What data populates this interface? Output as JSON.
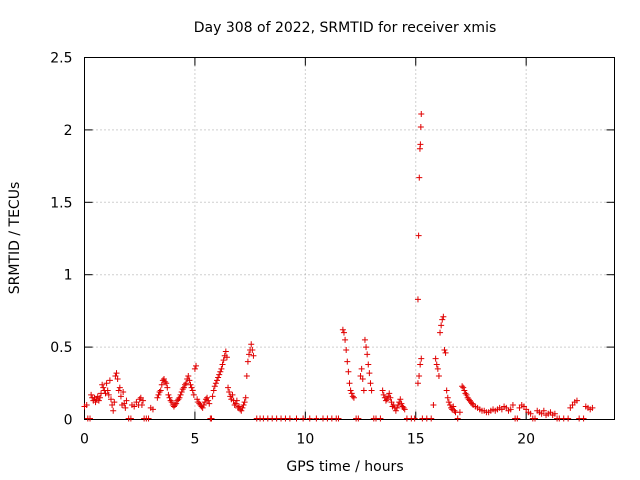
{
  "chart_data": {
    "type": "scatter",
    "title": "Day 308 of 2022, SRMTID for receiver xmis",
    "xlabel": "GPS time / hours",
    "ylabel": "SRMTID / TECUs",
    "xlim": [
      0,
      24
    ],
    "ylim": [
      0,
      2.5
    ],
    "x_ticks": [
      0,
      5,
      10,
      15,
      20
    ],
    "x_tick_labels": [
      "0",
      "5",
      "10",
      "15",
      "20"
    ],
    "y_ticks": [
      0,
      0.5,
      1,
      1.5,
      2,
      2.5
    ],
    "y_tick_labels": [
      "0",
      "0.5",
      "1",
      "1.5",
      "2",
      "2.5"
    ],
    "grid": true,
    "marker": "+",
    "marker_color": "#e00000",
    "series": [
      {
        "name": "SRMTID",
        "points": [
          [
            0.0,
            0.09
          ],
          [
            0.1,
            0.1
          ],
          [
            0.15,
            0.0
          ],
          [
            0.25,
            0.0
          ],
          [
            0.3,
            0.17
          ],
          [
            0.35,
            0.15
          ],
          [
            0.4,
            0.13
          ],
          [
            0.45,
            0.15
          ],
          [
            0.5,
            0.12
          ],
          [
            0.55,
            0.14
          ],
          [
            0.6,
            0.16
          ],
          [
            0.65,
            0.13
          ],
          [
            0.7,
            0.15
          ],
          [
            0.75,
            0.18
          ],
          [
            0.8,
            0.24
          ],
          [
            0.85,
            0.22
          ],
          [
            0.9,
            0.2
          ],
          [
            0.95,
            0.18
          ],
          [
            1.0,
            0.25
          ],
          [
            1.05,
            0.2
          ],
          [
            1.1,
            0.17
          ],
          [
            1.15,
            0.27
          ],
          [
            1.2,
            0.14
          ],
          [
            1.25,
            0.1
          ],
          [
            1.3,
            0.06
          ],
          [
            1.35,
            0.12
          ],
          [
            1.4,
            0.3
          ],
          [
            1.45,
            0.32
          ],
          [
            1.5,
            0.28
          ],
          [
            1.55,
            0.2
          ],
          [
            1.6,
            0.22
          ],
          [
            1.65,
            0.16
          ],
          [
            1.7,
            0.1
          ],
          [
            1.75,
            0.19
          ],
          [
            1.8,
            0.11
          ],
          [
            1.85,
            0.08
          ],
          [
            1.9,
            0.13
          ],
          [
            2.0,
            0.0
          ],
          [
            2.1,
            0.0
          ],
          [
            2.15,
            0.1
          ],
          [
            2.25,
            0.09
          ],
          [
            2.35,
            0.12
          ],
          [
            2.45,
            0.1
          ],
          [
            2.5,
            0.14
          ],
          [
            2.55,
            0.15
          ],
          [
            2.6,
            0.1
          ],
          [
            2.65,
            0.13
          ],
          [
            2.7,
            0.0
          ],
          [
            2.8,
            0.0
          ],
          [
            2.9,
            0.0
          ],
          [
            3.0,
            0.08
          ],
          [
            3.1,
            0.07
          ],
          [
            3.3,
            0.15
          ],
          [
            3.35,
            0.17
          ],
          [
            3.4,
            0.19
          ],
          [
            3.45,
            0.2
          ],
          [
            3.5,
            0.24
          ],
          [
            3.55,
            0.27
          ],
          [
            3.6,
            0.28
          ],
          [
            3.65,
            0.26
          ],
          [
            3.7,
            0.25
          ],
          [
            3.75,
            0.22
          ],
          [
            3.8,
            0.17
          ],
          [
            3.85,
            0.15
          ],
          [
            3.9,
            0.13
          ],
          [
            3.95,
            0.12
          ],
          [
            4.0,
            0.1
          ],
          [
            4.05,
            0.09
          ],
          [
            4.1,
            0.1
          ],
          [
            4.15,
            0.11
          ],
          [
            4.2,
            0.13
          ],
          [
            4.25,
            0.14
          ],
          [
            4.3,
            0.15
          ],
          [
            4.35,
            0.17
          ],
          [
            4.4,
            0.19
          ],
          [
            4.45,
            0.21
          ],
          [
            4.5,
            0.22
          ],
          [
            4.55,
            0.24
          ],
          [
            4.6,
            0.25
          ],
          [
            4.65,
            0.28
          ],
          [
            4.7,
            0.3
          ],
          [
            4.75,
            0.27
          ],
          [
            4.8,
            0.24
          ],
          [
            4.85,
            0.22
          ],
          [
            4.9,
            0.2
          ],
          [
            4.95,
            0.17
          ],
          [
            5.0,
            0.35
          ],
          [
            5.05,
            0.37
          ],
          [
            5.1,
            0.14
          ],
          [
            5.15,
            0.12
          ],
          [
            5.2,
            0.11
          ],
          [
            5.25,
            0.1
          ],
          [
            5.3,
            0.09
          ],
          [
            5.35,
            0.08
          ],
          [
            5.4,
            0.1
          ],
          [
            5.45,
            0.12
          ],
          [
            5.5,
            0.14
          ],
          [
            5.55,
            0.15
          ],
          [
            5.6,
            0.13
          ],
          [
            5.65,
            0.11
          ],
          [
            5.7,
            0.0
          ],
          [
            5.75,
            0.0
          ],
          [
            5.8,
            0.16
          ],
          [
            5.85,
            0.2
          ],
          [
            5.9,
            0.23
          ],
          [
            5.95,
            0.25
          ],
          [
            6.0,
            0.27
          ],
          [
            6.05,
            0.29
          ],
          [
            6.1,
            0.31
          ],
          [
            6.15,
            0.33
          ],
          [
            6.2,
            0.35
          ],
          [
            6.25,
            0.38
          ],
          [
            6.3,
            0.41
          ],
          [
            6.35,
            0.44
          ],
          [
            6.4,
            0.47
          ],
          [
            6.45,
            0.43
          ],
          [
            6.5,
            0.22
          ],
          [
            6.55,
            0.19
          ],
          [
            6.6,
            0.16
          ],
          [
            6.65,
            0.14
          ],
          [
            6.7,
            0.17
          ],
          [
            6.75,
            0.13
          ],
          [
            6.8,
            0.1
          ],
          [
            6.85,
            0.11
          ],
          [
            6.9,
            0.13
          ],
          [
            6.95,
            0.08
          ],
          [
            7.0,
            0.09
          ],
          [
            7.05,
            0.07
          ],
          [
            7.1,
            0.06
          ],
          [
            7.15,
            0.08
          ],
          [
            7.2,
            0.1
          ],
          [
            7.25,
            0.12
          ],
          [
            7.3,
            0.15
          ],
          [
            7.35,
            0.3
          ],
          [
            7.4,
            0.4
          ],
          [
            7.45,
            0.45
          ],
          [
            7.5,
            0.48
          ],
          [
            7.55,
            0.52
          ],
          [
            7.6,
            0.48
          ],
          [
            7.65,
            0.44
          ],
          [
            7.8,
            0.0
          ],
          [
            7.95,
            0.0
          ],
          [
            8.1,
            0.0
          ],
          [
            8.3,
            0.0
          ],
          [
            8.5,
            0.0
          ],
          [
            8.7,
            0.0
          ],
          [
            8.9,
            0.0
          ],
          [
            9.1,
            0.0
          ],
          [
            9.3,
            0.0
          ],
          [
            9.6,
            0.0
          ],
          [
            9.9,
            0.0
          ],
          [
            10.2,
            0.0
          ],
          [
            10.5,
            0.0
          ],
          [
            10.8,
            0.0
          ],
          [
            11.0,
            0.0
          ],
          [
            11.2,
            0.0
          ],
          [
            11.4,
            0.0
          ],
          [
            11.5,
            0.0
          ],
          [
            11.7,
            0.62
          ],
          [
            11.75,
            0.6
          ],
          [
            11.8,
            0.55
          ],
          [
            11.85,
            0.48
          ],
          [
            11.9,
            0.4
          ],
          [
            11.95,
            0.33
          ],
          [
            12.0,
            0.25
          ],
          [
            12.05,
            0.2
          ],
          [
            12.1,
            0.18
          ],
          [
            12.15,
            0.16
          ],
          [
            12.2,
            0.15
          ],
          [
            12.3,
            0.0
          ],
          [
            12.4,
            0.0
          ],
          [
            12.5,
            0.3
          ],
          [
            12.55,
            0.35
          ],
          [
            12.6,
            0.28
          ],
          [
            12.65,
            0.2
          ],
          [
            12.7,
            0.55
          ],
          [
            12.75,
            0.5
          ],
          [
            12.8,
            0.45
          ],
          [
            12.85,
            0.38
          ],
          [
            12.9,
            0.32
          ],
          [
            12.95,
            0.25
          ],
          [
            13.0,
            0.2
          ],
          [
            13.1,
            0.0
          ],
          [
            13.2,
            0.0
          ],
          [
            13.4,
            0.0
          ],
          [
            13.5,
            0.2
          ],
          [
            13.55,
            0.17
          ],
          [
            13.6,
            0.15
          ],
          [
            13.65,
            0.13
          ],
          [
            13.7,
            0.14
          ],
          [
            13.75,
            0.16
          ],
          [
            13.8,
            0.18
          ],
          [
            13.85,
            0.15
          ],
          [
            13.9,
            0.12
          ],
          [
            13.95,
            0.09
          ],
          [
            14.0,
            0.1
          ],
          [
            14.05,
            0.08
          ],
          [
            14.1,
            0.06
          ],
          [
            14.15,
            0.08
          ],
          [
            14.2,
            0.1
          ],
          [
            14.25,
            0.12
          ],
          [
            14.3,
            0.14
          ],
          [
            14.35,
            0.11
          ],
          [
            14.4,
            0.09
          ],
          [
            14.45,
            0.08
          ],
          [
            14.5,
            0.07
          ],
          [
            14.6,
            0.0
          ],
          [
            14.8,
            0.0
          ],
          [
            14.95,
            0.0
          ],
          [
            15.1,
            0.25
          ],
          [
            15.15,
            0.3
          ],
          [
            15.2,
            0.38
          ],
          [
            15.25,
            0.42
          ],
          [
            15.1,
            0.83
          ],
          [
            15.13,
            1.27
          ],
          [
            15.16,
            1.67
          ],
          [
            15.19,
            1.87
          ],
          [
            15.21,
            1.9
          ],
          [
            15.23,
            2.02
          ],
          [
            15.25,
            2.11
          ],
          [
            15.3,
            0.0
          ],
          [
            15.5,
            0.0
          ],
          [
            15.7,
            0.0
          ],
          [
            15.8,
            0.1
          ],
          [
            15.9,
            0.42
          ],
          [
            15.95,
            0.38
          ],
          [
            16.0,
            0.35
          ],
          [
            16.05,
            0.3
          ],
          [
            16.1,
            0.6
          ],
          [
            16.15,
            0.65
          ],
          [
            16.2,
            0.69
          ],
          [
            16.25,
            0.71
          ],
          [
            16.3,
            0.48
          ],
          [
            16.35,
            0.46
          ],
          [
            16.4,
            0.2
          ],
          [
            16.45,
            0.15
          ],
          [
            16.5,
            0.12
          ],
          [
            16.55,
            0.1
          ],
          [
            16.6,
            0.08
          ],
          [
            16.65,
            0.07
          ],
          [
            16.7,
            0.09
          ],
          [
            16.75,
            0.06
          ],
          [
            16.8,
            0.05
          ],
          [
            16.9,
            0.0
          ],
          [
            17.0,
            0.05
          ],
          [
            17.1,
            0.23
          ],
          [
            17.15,
            0.22
          ],
          [
            17.2,
            0.2
          ],
          [
            17.25,
            0.18
          ],
          [
            17.3,
            0.17
          ],
          [
            17.35,
            0.15
          ],
          [
            17.4,
            0.14
          ],
          [
            17.45,
            0.13
          ],
          [
            17.5,
            0.12
          ],
          [
            17.55,
            0.11
          ],
          [
            17.6,
            0.1
          ],
          [
            17.7,
            0.09
          ],
          [
            17.8,
            0.08
          ],
          [
            17.9,
            0.07
          ],
          [
            18.0,
            0.06
          ],
          [
            18.1,
            0.06
          ],
          [
            18.2,
            0.05
          ],
          [
            18.3,
            0.05
          ],
          [
            18.4,
            0.06
          ],
          [
            18.5,
            0.07
          ],
          [
            18.6,
            0.06
          ],
          [
            18.7,
            0.07
          ],
          [
            18.8,
            0.08
          ],
          [
            18.9,
            0.07
          ],
          [
            19.0,
            0.09
          ],
          [
            19.1,
            0.08
          ],
          [
            19.2,
            0.06
          ],
          [
            19.3,
            0.07
          ],
          [
            19.4,
            0.1
          ],
          [
            19.5,
            0.0
          ],
          [
            19.6,
            0.0
          ],
          [
            19.7,
            0.08
          ],
          [
            19.8,
            0.1
          ],
          [
            19.9,
            0.09
          ],
          [
            20.0,
            0.07
          ],
          [
            20.1,
            0.05
          ],
          [
            20.2,
            0.04
          ],
          [
            20.3,
            0.0
          ],
          [
            20.4,
            0.0
          ],
          [
            20.5,
            0.06
          ],
          [
            20.6,
            0.05
          ],
          [
            20.7,
            0.04
          ],
          [
            20.8,
            0.06
          ],
          [
            20.9,
            0.03
          ],
          [
            21.0,
            0.04
          ],
          [
            21.1,
            0.05
          ],
          [
            21.2,
            0.03
          ],
          [
            21.3,
            0.04
          ],
          [
            21.4,
            0.0
          ],
          [
            21.5,
            0.0
          ],
          [
            21.7,
            0.0
          ],
          [
            21.9,
            0.0
          ],
          [
            22.0,
            0.08
          ],
          [
            22.1,
            0.1
          ],
          [
            22.2,
            0.12
          ],
          [
            22.3,
            0.13
          ],
          [
            22.4,
            0.0
          ],
          [
            22.6,
            0.0
          ],
          [
            22.7,
            0.09
          ],
          [
            22.8,
            0.08
          ],
          [
            22.9,
            0.07
          ],
          [
            23.0,
            0.08
          ]
        ]
      }
    ]
  }
}
